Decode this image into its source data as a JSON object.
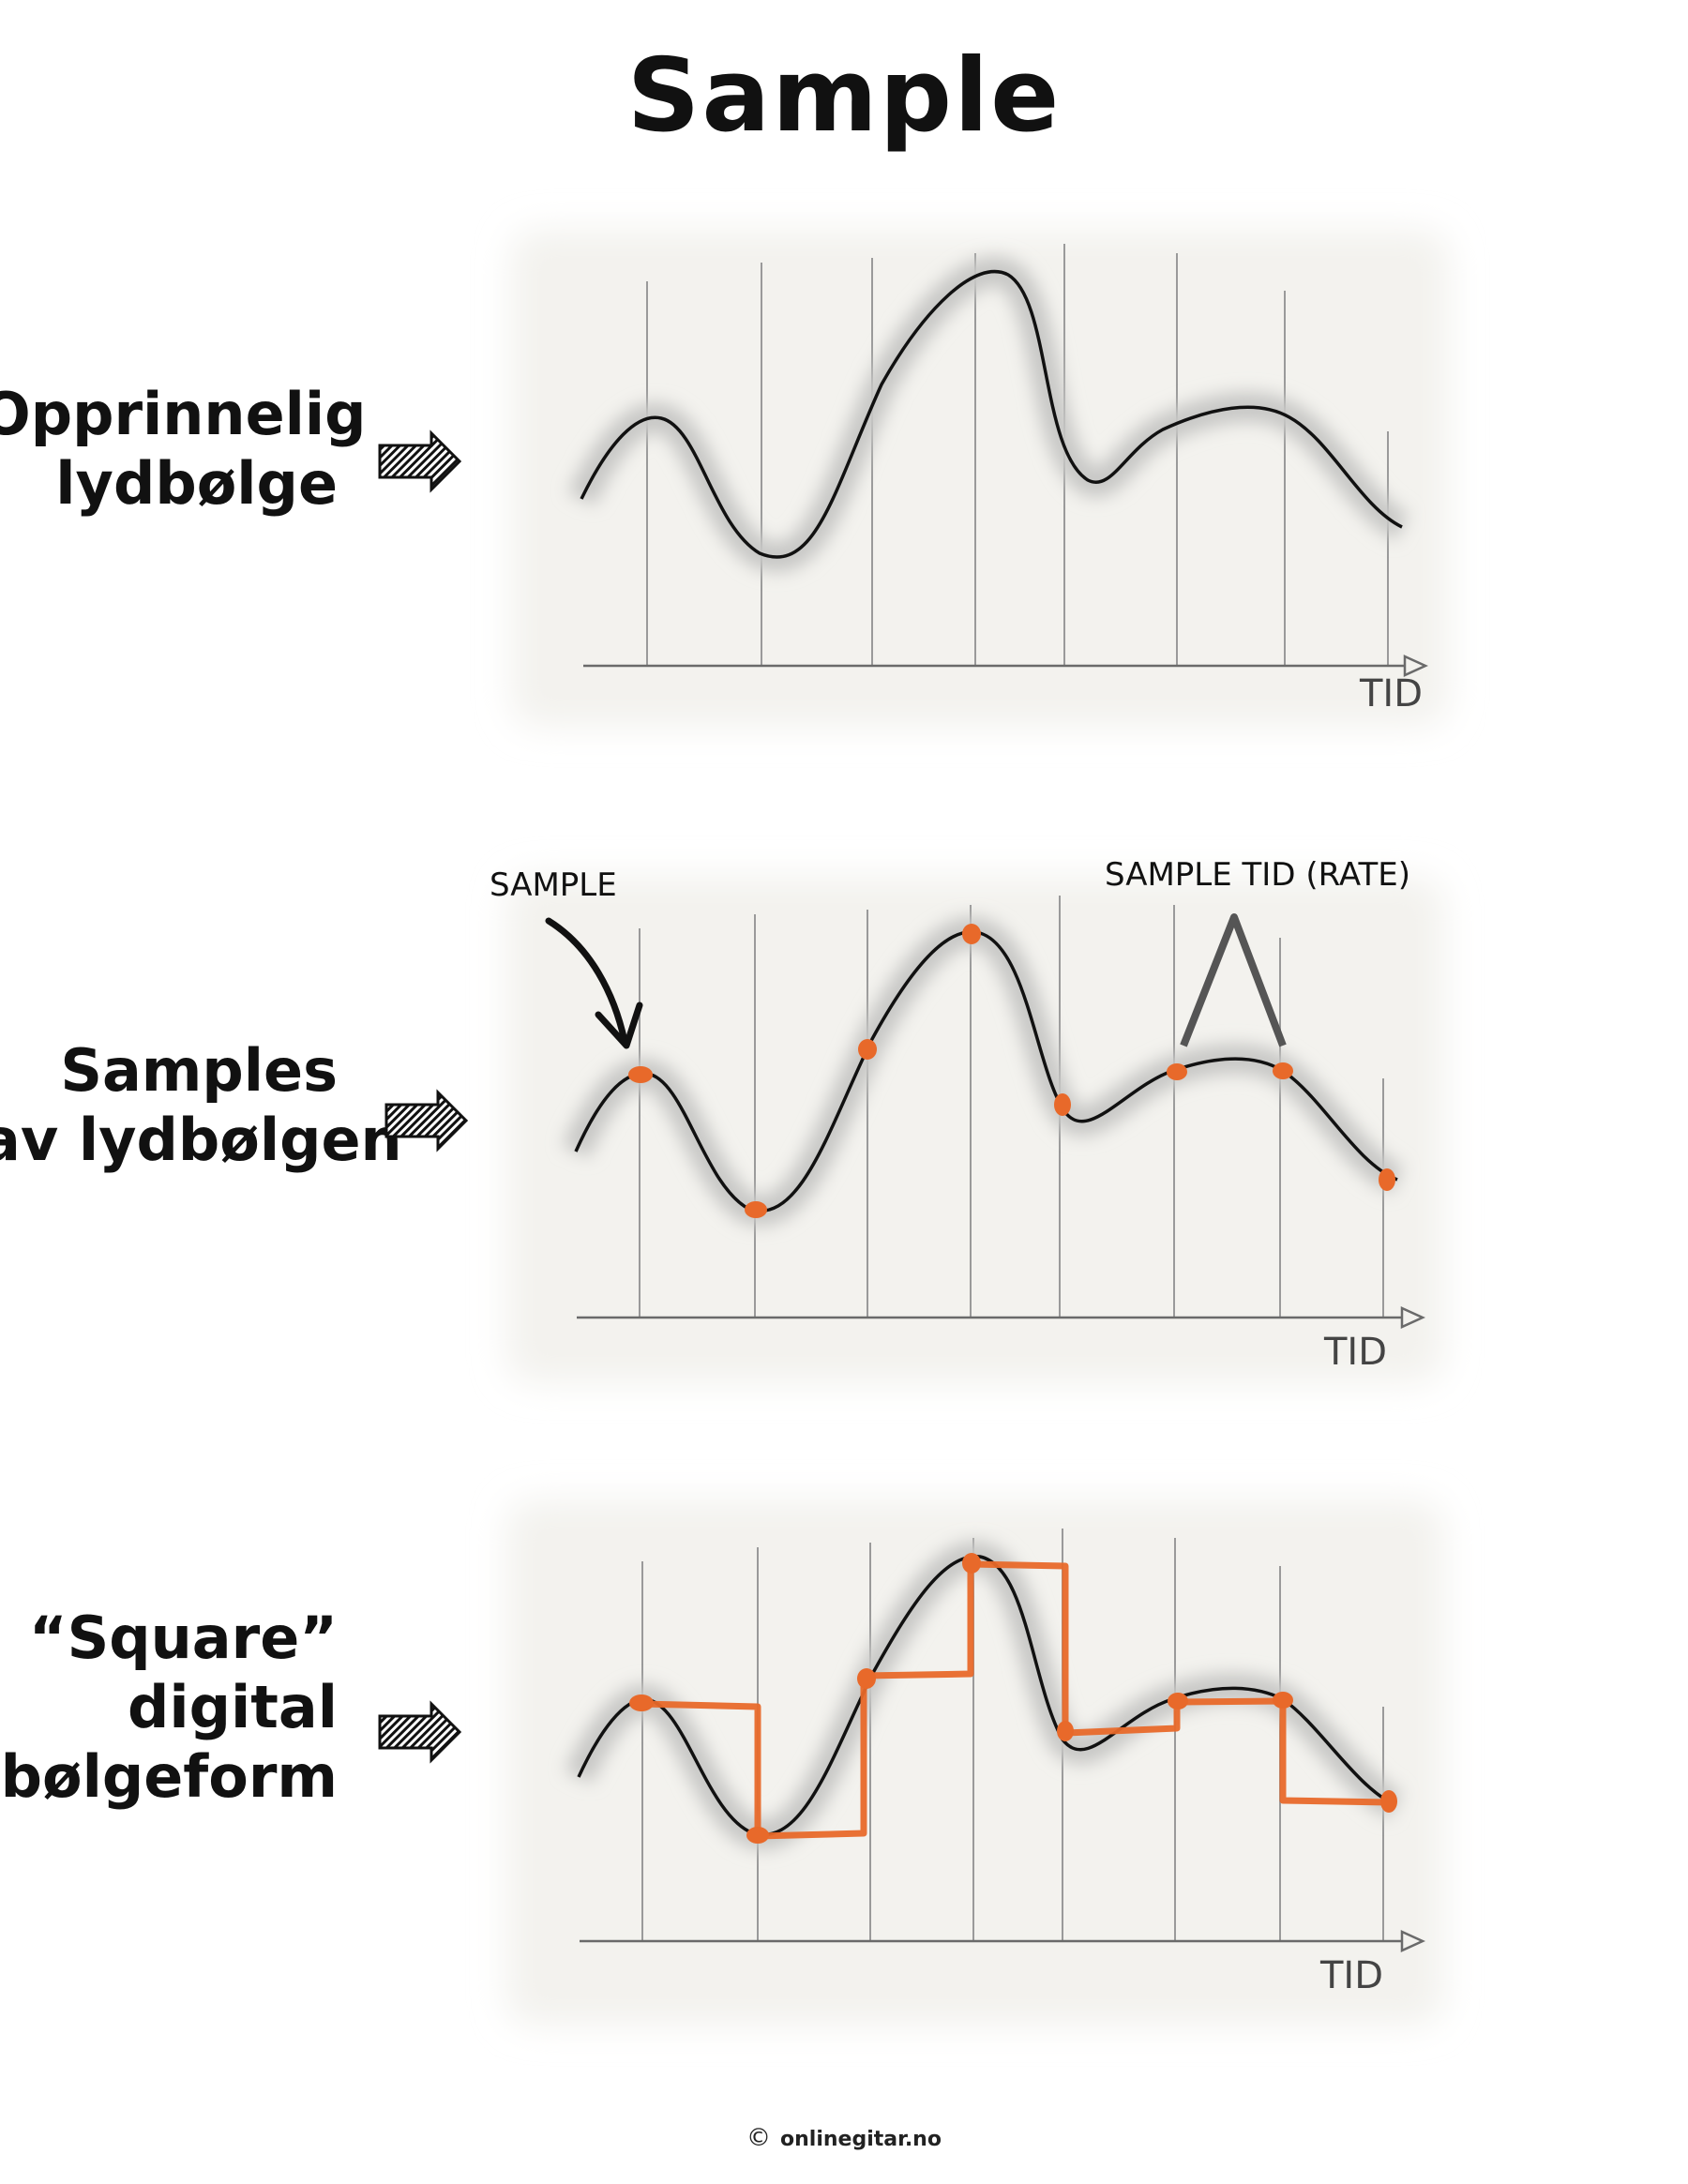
{
  "title": "Sample",
  "rows": [
    {
      "label_lines": [
        "Opprinnelig",
        "lydbølge"
      ],
      "axis_label": "TID"
    },
    {
      "label_lines": [
        "Samples",
        "av lydbølgen"
      ],
      "axis_label": "TID",
      "annotations": {
        "sample": "SAMPLE",
        "rate": "SAMPLE TID (RATE)"
      }
    },
    {
      "label_lines": [
        "“Square”",
        "digital",
        "bølgeform"
      ],
      "axis_label": "TID"
    }
  ],
  "footer": {
    "copyright": "©",
    "site": "onlinegitar.no"
  },
  "colors": {
    "wave": "#111111",
    "sample": "#e8692a",
    "grid": "#9a9a9a",
    "panel": "#f3f2ee"
  },
  "icons": [
    "striped-arrow-icon",
    "curved-arrow-icon",
    "caret-icon"
  ]
}
